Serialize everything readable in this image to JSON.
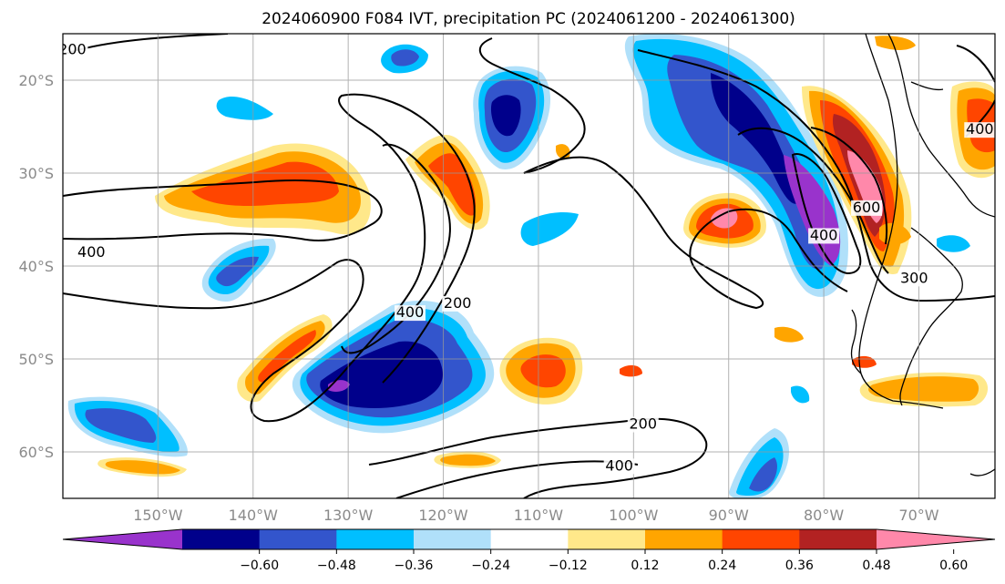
{
  "title": "2024060900 F084 IVT, precipitation PC (2024061200 - 2024061300)",
  "map": {
    "lon_ticks": [
      "150°W",
      "140°W",
      "130°W",
      "120°W",
      "110°W",
      "100°W",
      "90°W",
      "80°W",
      "70°W"
    ],
    "lat_ticks": [
      "20°S",
      "30°S",
      "40°S",
      "50°S",
      "60°S"
    ],
    "lon_values": [
      -150,
      -140,
      -130,
      -120,
      -110,
      -100,
      -90,
      -80,
      -70
    ],
    "lat_values": [
      -20,
      -30,
      -40,
      -50,
      -60
    ],
    "lon_range": [
      -160,
      -62
    ],
    "lat_range": [
      -65,
      -15
    ],
    "grid": true
  },
  "ivt_contour_labels": [
    {
      "text": "200",
      "lon": -159,
      "lat": -17.2
    },
    {
      "text": "400",
      "lon": -157,
      "lat": -39
    },
    {
      "text": "400",
      "lon": -123.5,
      "lat": -45.5
    },
    {
      "text": "200",
      "lon": -118.5,
      "lat": -44.5
    },
    {
      "text": "200",
      "lon": -99,
      "lat": -57.5
    },
    {
      "text": "400",
      "lon": -101.5,
      "lat": -62
    },
    {
      "text": "400",
      "lon": -80,
      "lat": -37.2
    },
    {
      "text": "600",
      "lon": -75.5,
      "lat": -34.2
    },
    {
      "text": "300",
      "lon": -70.5,
      "lat": -41.8
    },
    {
      "text": "400",
      "lon": -63.6,
      "lat": -25.8
    }
  ],
  "colorbar": {
    "colors": [
      "#9933cc",
      "#00008b",
      "#3355cc",
      "#00bfff",
      "#b0e0fa",
      "#ffffff",
      "#ffe88a",
      "#ffa500",
      "#ff4500",
      "#b22222",
      "#ff88aa"
    ],
    "tick_labels": [
      "−0.60",
      "−0.48",
      "−0.36",
      "−0.24",
      "−0.12",
      "0.12",
      "0.24",
      "0.36",
      "0.48",
      "0.60"
    ]
  }
}
